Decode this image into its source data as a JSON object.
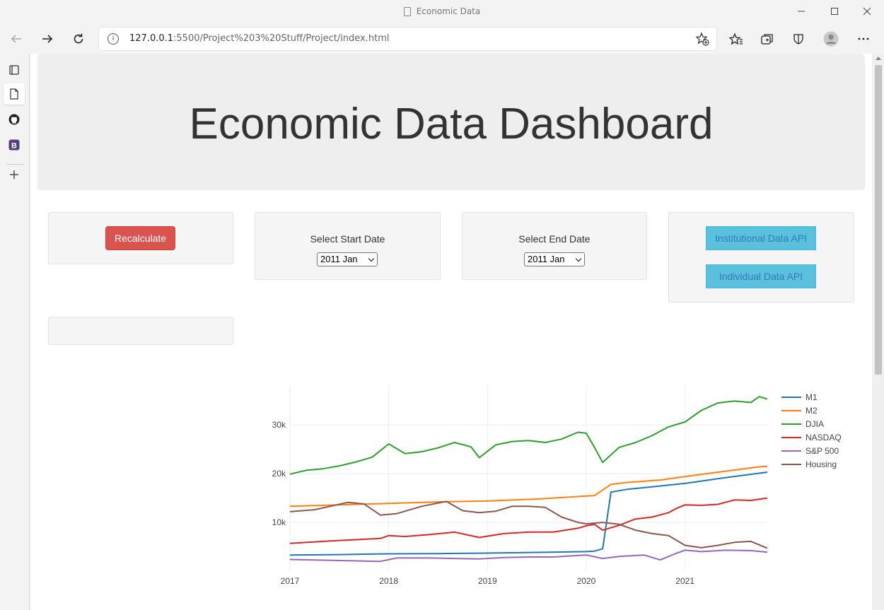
{
  "window": {
    "title": "Economic Data"
  },
  "browser": {
    "url_host": "127.0.0.1",
    "url_rest": ":5500/Project%203%20Stuff/Project/index.html"
  },
  "page": {
    "heading": "Economic Data Dashboard",
    "recalculate_label": "Recalculate",
    "start_label": "Select Start Date",
    "start_value": "2011 Jan",
    "end_label": "Select End Date",
    "end_value": "2011 Jan",
    "institutional_api_label": "Institutional Data API",
    "individual_api_label": "Individual Data API"
  },
  "colors": {
    "M1": "#1f77b4",
    "M2": "#ff7f0e",
    "DJIA": "#2ca02c",
    "NASDAQ": "#d62728",
    "S&P 500": "#9467bd",
    "Housing": "#8c564b"
  },
  "chart_data": {
    "type": "line",
    "x_tick_labels": [
      "2017",
      "2018",
      "2019",
      "2020",
      "2021"
    ],
    "y_tick_labels": [
      "10k",
      "20k",
      "30k"
    ],
    "y_ticks": [
      10000,
      20000,
      30000
    ],
    "x_range": [
      "2017-01",
      "2021-11"
    ],
    "y_range": [
      0,
      38000
    ],
    "grid": true,
    "legend_position": "top-right",
    "series": [
      {
        "name": "M1",
        "x": [
          "2017-01",
          "2017-07",
          "2018-01",
          "2018-07",
          "2019-01",
          "2019-07",
          "2020-01",
          "2020-02",
          "2020-03",
          "2020-04",
          "2020-05",
          "2020-06",
          "2020-09",
          "2021-01",
          "2021-06",
          "2021-11"
        ],
        "values": [
          3300,
          3400,
          3550,
          3600,
          3700,
          3850,
          4000,
          4100,
          4600,
          16200,
          16500,
          16800,
          17300,
          18000,
          19200,
          20300
        ]
      },
      {
        "name": "M2",
        "x": [
          "2017-01",
          "2017-07",
          "2018-01",
          "2018-07",
          "2019-01",
          "2019-07",
          "2020-01",
          "2020-02",
          "2020-04",
          "2020-06",
          "2020-10",
          "2021-01",
          "2021-05",
          "2021-10",
          "2021-11"
        ],
        "values": [
          13300,
          13600,
          13900,
          14200,
          14400,
          14800,
          15400,
          15500,
          17800,
          18200,
          18700,
          19400,
          20300,
          21400,
          21500
        ]
      },
      {
        "name": "DJIA",
        "x": [
          "2017-01",
          "2017-03",
          "2017-05",
          "2017-07",
          "2017-09",
          "2017-11",
          "2018-01",
          "2018-03",
          "2018-05",
          "2018-07",
          "2018-09",
          "2018-11",
          "2018-12",
          "2019-02",
          "2019-04",
          "2019-06",
          "2019-08",
          "2019-10",
          "2019-12",
          "2020-01",
          "2020-02",
          "2020-03",
          "2020-05",
          "2020-07",
          "2020-09",
          "2020-11",
          "2021-01",
          "2021-03",
          "2021-05",
          "2021-07",
          "2021-09",
          "2021-10",
          "2021-11"
        ],
        "values": [
          19900,
          20700,
          21000,
          21600,
          22400,
          23400,
          26100,
          24100,
          24500,
          25300,
          26400,
          25500,
          23300,
          25900,
          26600,
          26800,
          26400,
          27100,
          28500,
          28300,
          25400,
          22300,
          25400,
          26400,
          27800,
          29600,
          30600,
          33000,
          34500,
          34900,
          34600,
          35800,
          35300
        ]
      },
      {
        "name": "NASDAQ",
        "x": [
          "2017-01",
          "2017-06",
          "2017-12",
          "2018-01",
          "2018-03",
          "2018-06",
          "2018-09",
          "2018-12",
          "2019-03",
          "2019-06",
          "2019-09",
          "2019-12",
          "2020-01",
          "2020-02",
          "2020-03",
          "2020-05",
          "2020-07",
          "2020-09",
          "2020-11",
          "2020-12",
          "2021-01",
          "2021-03",
          "2021-05",
          "2021-07",
          "2021-09",
          "2021-11"
        ],
        "values": [
          5700,
          6200,
          6700,
          7300,
          7100,
          7500,
          8000,
          6900,
          7700,
          8000,
          8000,
          8800,
          9300,
          9600,
          8400,
          9400,
          10700,
          11100,
          12000,
          12900,
          13600,
          13500,
          13700,
          14600,
          14500,
          15000
        ]
      },
      {
        "name": "S&P 500",
        "x": [
          "2017-01",
          "2017-12",
          "2018-02",
          "2018-06",
          "2018-12",
          "2019-03",
          "2019-06",
          "2019-09",
          "2019-12",
          "2020-01",
          "2020-03",
          "2020-05",
          "2020-08",
          "2020-10",
          "2020-12",
          "2021-01",
          "2021-03",
          "2021-06",
          "2021-09",
          "2021-11"
        ],
        "values": [
          2400,
          2000,
          2700,
          2700,
          2500,
          2800,
          2900,
          2900,
          3200,
          3300,
          2600,
          3000,
          3300,
          2300,
          3700,
          4300,
          4000,
          4300,
          4200,
          3900
        ]
      },
      {
        "name": "Housing",
        "x": [
          "2017-01",
          "2017-04",
          "2017-08",
          "2017-10",
          "2017-12",
          "2018-02",
          "2018-05",
          "2018-08",
          "2018-10",
          "2018-12",
          "2019-02",
          "2019-04",
          "2019-06",
          "2019-08",
          "2019-10",
          "2019-12",
          "2020-01",
          "2020-03",
          "2020-05",
          "2020-07",
          "2020-09",
          "2020-11",
          "2021-01",
          "2021-03",
          "2021-05",
          "2021-07",
          "2021-09",
          "2021-11"
        ],
        "values": [
          12200,
          12600,
          14100,
          13800,
          11500,
          11800,
          13300,
          14300,
          12400,
          12000,
          12300,
          13300,
          13300,
          13100,
          11100,
          10000,
          9700,
          10000,
          9600,
          8400,
          7700,
          7300,
          5300,
          4800,
          5300,
          5900,
          6100,
          4700
        ]
      }
    ]
  }
}
